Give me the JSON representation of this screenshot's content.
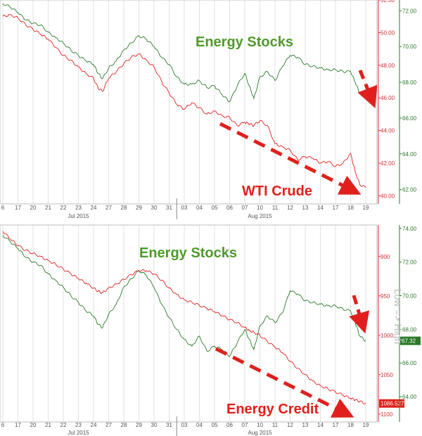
{
  "colors": {
    "stocks": "#2a7a2a",
    "crude": "#e0201c",
    "credit": "#e0201c",
    "arrow": "#e0201c",
    "grid": "#cfcfcf",
    "green_axis": "#2a7a2a",
    "red_axis": "#d03030",
    "label_green": "#4f9a2a"
  },
  "chart_data": [
    {
      "type": "line",
      "x_labels": [
        "6",
        "17",
        "20",
        "21",
        "22",
        "23",
        "24",
        "27",
        "28",
        "29",
        "30",
        "31",
        "03",
        "04",
        "05",
        "06",
        "07",
        "10",
        "11",
        "12",
        "13",
        "14",
        "17",
        "18",
        "19"
      ],
      "month_labels": [
        {
          "label": "Jul 2015",
          "at": 5
        },
        {
          "label": "Aug 2015",
          "at": 17
        }
      ],
      "left_axis": {
        "ticks": [
          "52.00",
          "50.00",
          "48.00",
          "46.00",
          "44.00",
          "42.00",
          "40.00"
        ],
        "values": [
          52,
          50,
          48,
          46,
          44,
          42,
          40
        ],
        "range": [
          39.5,
          52
        ]
      },
      "right_axis": {
        "ticks": [
          "72.00",
          "70.00",
          "68.00",
          "66.00",
          "64.00",
          "62.00"
        ],
        "values": [
          72,
          70,
          68,
          66,
          64,
          62
        ],
        "range": [
          61.2,
          72.6
        ]
      },
      "series": [
        {
          "name": "Energy Stocks",
          "axis": "right",
          "x": [
            0,
            0.5,
            1,
            1.5,
            2,
            2.5,
            3,
            3.5,
            4,
            4.5,
            5,
            5.5,
            6,
            6.3,
            6.6,
            7,
            7.5,
            8,
            8.5,
            9,
            9.5,
            10,
            10.5,
            11,
            11.5,
            12,
            12.5,
            13,
            13.5,
            14,
            14.5,
            15,
            15.5,
            16,
            16.3,
            16.6,
            17,
            17.5,
            18,
            18.5,
            19,
            19.5,
            20,
            20.5,
            21,
            21.5,
            22,
            22.5,
            23,
            23.3,
            23.6,
            24
          ],
          "values": [
            72.4,
            72.2,
            71.9,
            71.5,
            71.3,
            71.2,
            70.8,
            70.5,
            70.2,
            69.8,
            69.5,
            69.2,
            69.0,
            68.5,
            68.2,
            68.8,
            69.2,
            69.8,
            70.2,
            70.6,
            70.4,
            70.0,
            69.4,
            69.0,
            68.3,
            67.9,
            67.9,
            68.1,
            67.7,
            67.8,
            67.3,
            66.9,
            67.8,
            68.5,
            67.8,
            67.1,
            68.3,
            68.6,
            68.1,
            68.9,
            69.5,
            69.4,
            69.0,
            68.9,
            68.8,
            68.7,
            68.7,
            68.6,
            68.6,
            68.0,
            67.4,
            67.5
          ]
        },
        {
          "name": "WTI Crude",
          "axis": "left",
          "x": [
            0,
            0.5,
            1,
            1.5,
            2,
            2.5,
            3,
            3.5,
            4,
            4.5,
            5,
            5.5,
            6,
            6.3,
            6.6,
            7,
            7.5,
            8,
            8.5,
            9,
            9.5,
            10,
            10.5,
            11,
            11.5,
            12,
            12.5,
            13,
            13.5,
            14,
            14.5,
            15,
            15.5,
            16,
            16.3,
            16.6,
            17,
            17.5,
            18,
            18.5,
            19,
            19.5,
            20,
            20.5,
            21,
            21.5,
            22,
            22.5,
            23,
            23.3,
            23.6,
            24
          ],
          "values": [
            51.0,
            51.1,
            50.9,
            50.5,
            50.2,
            49.9,
            49.6,
            49.1,
            48.6,
            48.3,
            47.9,
            47.5,
            47.2,
            46.6,
            46.4,
            47.2,
            47.6,
            48.1,
            48.5,
            48.7,
            48.3,
            47.9,
            47.0,
            46.3,
            45.6,
            45.3,
            45.7,
            45.4,
            45.0,
            45.2,
            44.9,
            44.8,
            44.3,
            44.5,
            44.4,
            44.3,
            44.6,
            44.3,
            43.2,
            43.0,
            42.8,
            42.2,
            42.4,
            42.3,
            42.0,
            42.1,
            41.8,
            42.0,
            42.6,
            41.5,
            40.7,
            40.5
          ]
        }
      ],
      "annotations": [
        {
          "text": "Energy Stocks",
          "color": "green"
        },
        {
          "text": "WTI Crude",
          "color": "red"
        }
      ]
    },
    {
      "type": "line",
      "x_labels": [
        "6",
        "17",
        "20",
        "21",
        "22",
        "23",
        "24",
        "27",
        "28",
        "29",
        "30",
        "31",
        "03",
        "04",
        "05",
        "06",
        "07",
        "10",
        "11",
        "12",
        "13",
        "14",
        "17",
        "18",
        "19"
      ],
      "month_labels": [
        {
          "label": "Jul 2015",
          "at": 5
        },
        {
          "label": "Aug 2015",
          "at": 17
        }
      ],
      "left_axis": {
        "ticks": [
          "900",
          "950",
          "1000",
          "1050",
          "1100"
        ],
        "values": [
          900,
          950,
          1000,
          1050,
          1100
        ],
        "range": [
          860,
          1110
        ],
        "inverted": true,
        "label": "Low => High"
      },
      "right_axis": {
        "ticks": [
          "74.00",
          "72.00",
          "70.00",
          "68.00",
          "66.00",
          "64.00"
        ],
        "values": [
          74,
          72,
          70,
          68,
          66,
          64
        ],
        "range": [
          62.5,
          74.2
        ]
      },
      "last_value_tags": [
        {
          "text": "67.32",
          "value": 67.32,
          "axis": "right",
          "color": "green"
        },
        {
          "text": "1086.527",
          "value": 1086.527,
          "axis": "left",
          "color": "red"
        }
      ],
      "series": [
        {
          "name": "Energy Stocks",
          "axis": "right",
          "x": [
            0,
            0.5,
            1,
            1.5,
            2,
            2.5,
            3,
            3.5,
            4,
            4.5,
            5,
            5.5,
            6,
            6.3,
            6.6,
            7,
            7.5,
            8,
            8.5,
            9,
            9.5,
            10,
            10.5,
            11,
            11.5,
            12,
            12.5,
            13,
            13.5,
            14,
            14.5,
            15,
            15.5,
            16,
            16.3,
            16.6,
            17,
            17.5,
            18,
            18.5,
            19,
            19.5,
            20,
            20.5,
            21,
            21.5,
            22,
            22.5,
            23,
            23.3,
            23.6,
            24
          ],
          "values": [
            73.6,
            73.2,
            72.8,
            72.3,
            72.0,
            71.8,
            71.3,
            70.9,
            70.5,
            70.0,
            69.6,
            69.1,
            68.8,
            68.3,
            68.1,
            68.9,
            69.5,
            70.5,
            71.0,
            71.5,
            71.2,
            70.5,
            69.5,
            68.7,
            68.0,
            67.4,
            67.0,
            67.6,
            66.7,
            67.0,
            66.8,
            66.4,
            67.2,
            68.0,
            67.4,
            66.8,
            68.2,
            68.8,
            68.4,
            69.0,
            70.3,
            70.1,
            69.7,
            69.6,
            69.5,
            69.4,
            69.4,
            69.2,
            69.1,
            68.4,
            67.6,
            67.32
          ]
        },
        {
          "name": "Energy Credit",
          "axis": "left",
          "x": [
            0,
            0.5,
            1,
            1.5,
            2,
            2.5,
            3,
            3.5,
            4,
            4.5,
            5,
            5.5,
            6,
            6.3,
            6.6,
            7,
            7.5,
            8,
            8.5,
            9,
            9.5,
            10,
            10.5,
            11,
            11.5,
            12,
            12.5,
            13,
            13.5,
            14,
            14.5,
            15,
            15.5,
            16,
            16.3,
            16.6,
            17,
            17.5,
            18,
            18.5,
            19,
            19.5,
            20,
            20.5,
            21,
            21.5,
            22,
            22.5,
            23,
            23.3,
            23.6,
            24
          ],
          "values": [
            868,
            878,
            886,
            892,
            896,
            900,
            905,
            910,
            916,
            922,
            928,
            934,
            940,
            944,
            946,
            940,
            935,
            929,
            923,
            918,
            918,
            922,
            930,
            940,
            948,
            955,
            958,
            962,
            966,
            970,
            975,
            980,
            984,
            990,
            994,
            996,
            1000,
            1008,
            1015,
            1022,
            1033,
            1042,
            1050,
            1058,
            1064,
            1068,
            1072,
            1076,
            1080,
            1082,
            1084,
            1086.527
          ]
        }
      ],
      "annotations": [
        {
          "text": "Energy Stocks",
          "color": "green"
        },
        {
          "text": "Energy Credit",
          "color": "red"
        }
      ]
    }
  ]
}
